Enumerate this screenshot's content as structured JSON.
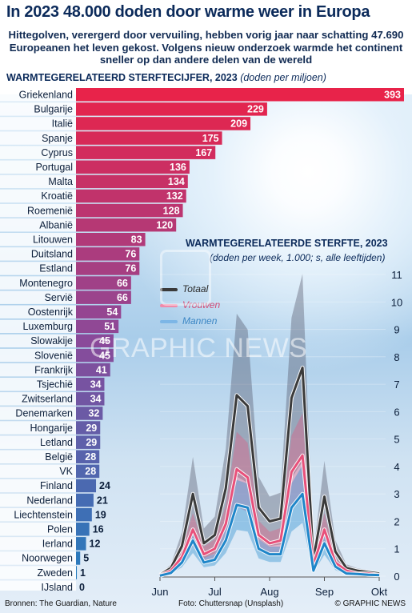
{
  "header": {
    "title": "In 2023 48.000 doden door warme weer in Europa",
    "subtitle": "Hittegolven, verergerd door vervuiling, hebben vorig jaar naar schatting 47.690 Europeanen het leven gekost. Volgens nieuw onderzoek warmde het continent sneller op dan andere delen van de wereld",
    "bar_chart_title": "WARMTEGERELATEERD STERFTECIJFER, 2023",
    "bar_chart_unit": "(doden per miljoen)"
  },
  "line_chart_header": {
    "title": "WARMTEGERELATEERDE STERFTE, 2023",
    "subtitle": "(doden per week, 1.000; s, alle leeftijden)"
  },
  "watermark": "GRAPHIC NEWS",
  "footer": {
    "sources": "Bronnen: The Guardian, Nature",
    "photo": "Foto: Chuttersnap (Unsplash)",
    "copyright": "© GRAPHIC NEWS"
  },
  "colors": {
    "bar_top": "#e8234a",
    "bar_bottom": "#1f7fc0",
    "total": "#3a3a3a",
    "women": "#e8507a",
    "men": "#2b8fd0",
    "title": "#0b2a5a"
  },
  "chart_data": [
    {
      "type": "bar",
      "orientation": "horizontal",
      "title": "WARMTEGERELATEERD STERFTECIJFER, 2023",
      "unit": "(doden per miljoen)",
      "categories": [
        "Griekenland",
        "Bulgarije",
        "Italië",
        "Spanje",
        "Cyprus",
        "Portugal",
        "Malta",
        "Kroatië",
        "Roemenië",
        "Albanië",
        "Litouwen",
        "Duitsland",
        "Estland",
        "Montenegro",
        "Servië",
        "Oostenrijk",
        "Luxemburg",
        "Slowakije",
        "Slovenië",
        "Frankrijk",
        "Tsjechië",
        "Zwitserland",
        "Denemarken",
        "Hongarije",
        "Letland",
        "België",
        "VK",
        "Finland",
        "Nederland",
        "Liechtenstein",
        "Polen",
        "Ierland",
        "Noorwegen",
        "Zweden",
        "IJsland"
      ],
      "values": [
        393,
        229,
        209,
        175,
        167,
        136,
        134,
        132,
        128,
        120,
        83,
        76,
        76,
        66,
        66,
        54,
        51,
        45,
        45,
        41,
        34,
        34,
        32,
        29,
        29,
        28,
        28,
        24,
        21,
        19,
        16,
        12,
        5,
        1,
        0
      ]
    },
    {
      "type": "line",
      "title": "WARMTEGERELATEERDE STERFTE, 2023",
      "subtitle": "(doden per week, 1.000; s, alle leeftijden)",
      "x_tick_labels": [
        "Jun",
        "Jul",
        "Aug",
        "Sep",
        "Okt"
      ],
      "x_range": [
        0,
        20
      ],
      "x_ticks": [
        0,
        5,
        10,
        15,
        20
      ],
      "ylim": [
        0,
        11
      ],
      "y_ticks": [
        0,
        1,
        2,
        3,
        4,
        5,
        6,
        7,
        8,
        9,
        10,
        11
      ],
      "legend": [
        "Totaal",
        "Vrouwen",
        "Mannen"
      ],
      "legend_position": "top-left",
      "x": [
        0,
        1,
        2,
        3,
        4,
        5,
        6,
        7,
        8,
        9,
        10,
        11,
        12,
        13,
        14,
        15,
        16,
        17,
        18,
        19,
        20
      ],
      "series": [
        {
          "name": "Totaal",
          "values": [
            0.05,
            0.3,
            1.1,
            3.0,
            1.2,
            1.5,
            3.2,
            6.6,
            6.2,
            2.5,
            2.0,
            2.1,
            6.5,
            7.6,
            0.6,
            2.9,
            0.9,
            0.3,
            0.2,
            0.15,
            0.1
          ]
        },
        {
          "name": "Vrouwen",
          "values": [
            0.03,
            0.2,
            0.7,
            1.7,
            0.8,
            1.0,
            1.9,
            3.9,
            3.6,
            1.5,
            1.2,
            1.3,
            3.8,
            4.4,
            0.4,
            1.7,
            0.5,
            0.2,
            0.1,
            0.1,
            0.05
          ]
        },
        {
          "name": "Mannen",
          "values": [
            0.02,
            0.12,
            0.5,
            1.3,
            0.5,
            0.6,
            1.3,
            2.6,
            2.5,
            1.0,
            0.8,
            0.8,
            2.5,
            3.0,
            0.2,
            1.2,
            0.35,
            0.1,
            0.08,
            0.05,
            0.04
          ]
        }
      ]
    }
  ]
}
